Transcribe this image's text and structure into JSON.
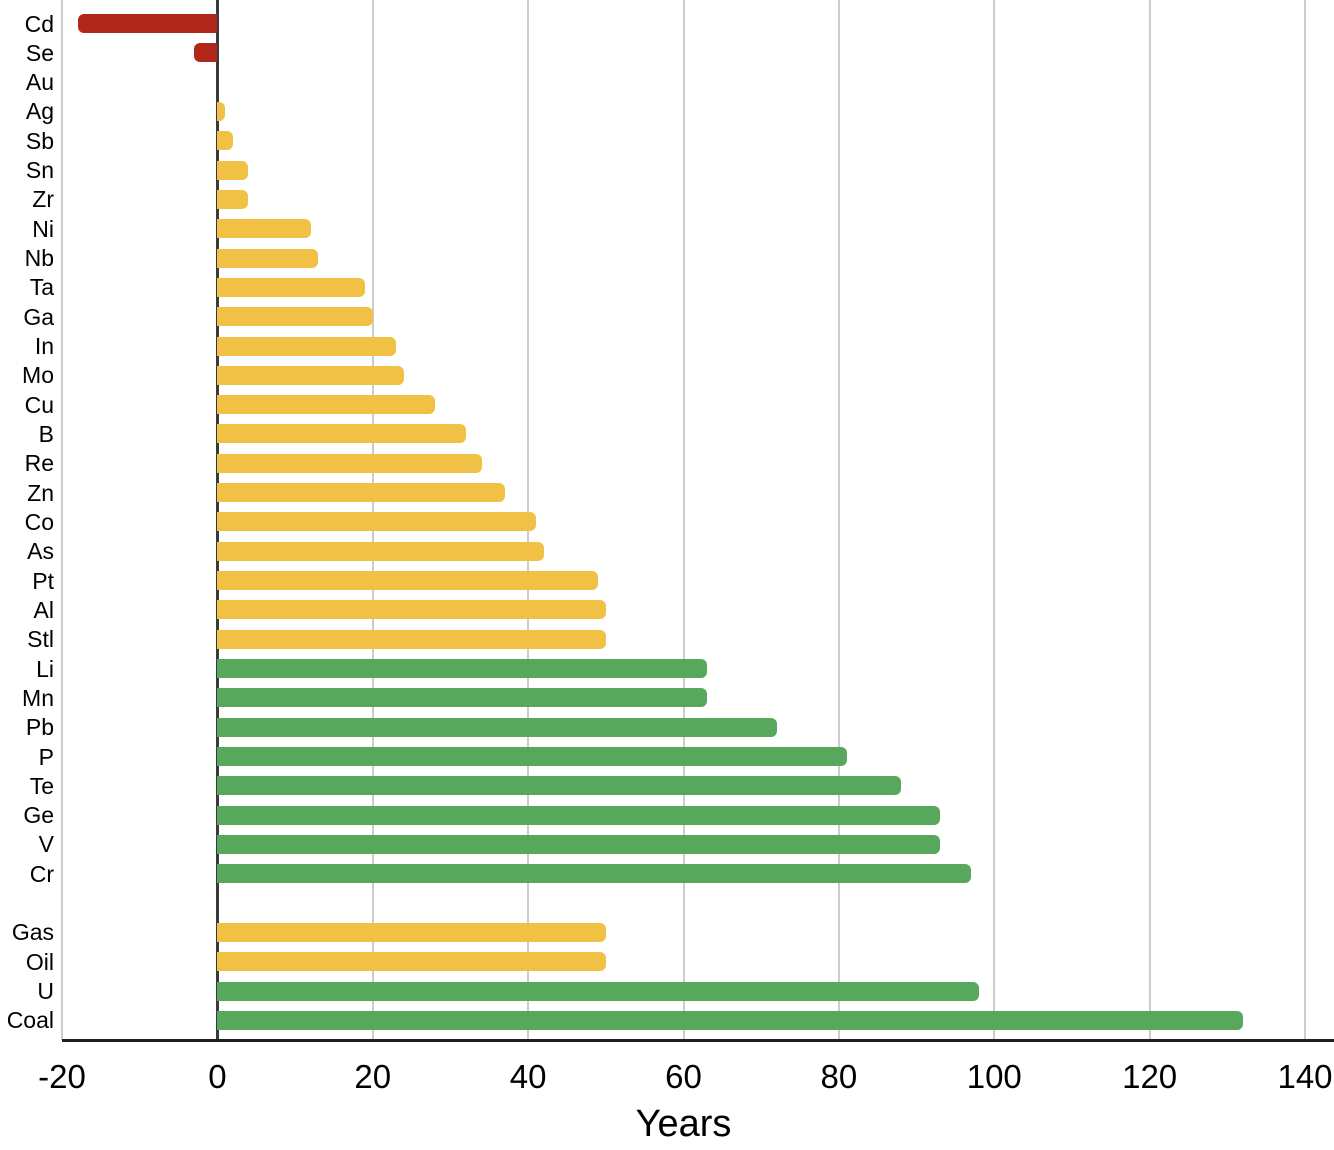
{
  "chart_data": {
    "type": "bar",
    "orientation": "horizontal",
    "title": "",
    "xlabel": "Years",
    "ylabel": "",
    "xlim": [
      -20,
      140
    ],
    "xticks": [
      -20,
      0,
      20,
      40,
      60,
      80,
      100,
      120,
      140
    ],
    "grid": true,
    "legend": false,
    "palette": {
      "depleting": "#b1281b",
      "limited": "#f0c144",
      "abundant": "#57a75c",
      "none": "transparent"
    },
    "grid_color": "#cccccc",
    "zero_axis_color": "#3a3a3a",
    "bottom_axis_color": "#1f1f1f",
    "groups": [
      {
        "name": "metals-minerals",
        "items": [
          {
            "label": "Cd",
            "value": -18,
            "status": "depleting"
          },
          {
            "label": "Se",
            "value": -3,
            "status": "depleting"
          },
          {
            "label": "Au",
            "value": 0,
            "status": "none"
          },
          {
            "label": "Ag",
            "value": 1,
            "status": "limited"
          },
          {
            "label": "Sb",
            "value": 2,
            "status": "limited"
          },
          {
            "label": "Sn",
            "value": 4,
            "status": "limited"
          },
          {
            "label": "Zr",
            "value": 4,
            "status": "limited"
          },
          {
            "label": "Ni",
            "value": 12,
            "status": "limited"
          },
          {
            "label": "Nb",
            "value": 13,
            "status": "limited"
          },
          {
            "label": "Ta",
            "value": 19,
            "status": "limited"
          },
          {
            "label": "Ga",
            "value": 20,
            "status": "limited"
          },
          {
            "label": "In",
            "value": 23,
            "status": "limited"
          },
          {
            "label": "Mo",
            "value": 24,
            "status": "limited"
          },
          {
            "label": "Cu",
            "value": 28,
            "status": "limited"
          },
          {
            "label": "B",
            "value": 32,
            "status": "limited"
          },
          {
            "label": "Re",
            "value": 34,
            "status": "limited"
          },
          {
            "label": "Zn",
            "value": 37,
            "status": "limited"
          },
          {
            "label": "Co",
            "value": 41,
            "status": "limited"
          },
          {
            "label": "As",
            "value": 42,
            "status": "limited"
          },
          {
            "label": "Pt",
            "value": 49,
            "status": "limited"
          },
          {
            "label": "Al",
            "value": 50,
            "status": "limited"
          },
          {
            "label": "Stl",
            "value": 50,
            "status": "limited"
          },
          {
            "label": "Li",
            "value": 63,
            "status": "abundant"
          },
          {
            "label": "Mn",
            "value": 63,
            "status": "abundant"
          },
          {
            "label": "Pb",
            "value": 72,
            "status": "abundant"
          },
          {
            "label": "P",
            "value": 81,
            "status": "abundant"
          },
          {
            "label": "Te",
            "value": 88,
            "status": "abundant"
          },
          {
            "label": "Ge",
            "value": 93,
            "status": "abundant"
          },
          {
            "label": "V",
            "value": 93,
            "status": "abundant"
          },
          {
            "label": "Cr",
            "value": 97,
            "status": "abundant"
          }
        ]
      },
      {
        "name": "energy",
        "items": [
          {
            "label": "Gas",
            "value": 50,
            "status": "limited"
          },
          {
            "label": "Oil",
            "value": 50,
            "status": "limited"
          },
          {
            "label": "U",
            "value": 98,
            "status": "abundant"
          },
          {
            "label": "Coal",
            "value": 132,
            "status": "abundant"
          }
        ]
      }
    ]
  }
}
